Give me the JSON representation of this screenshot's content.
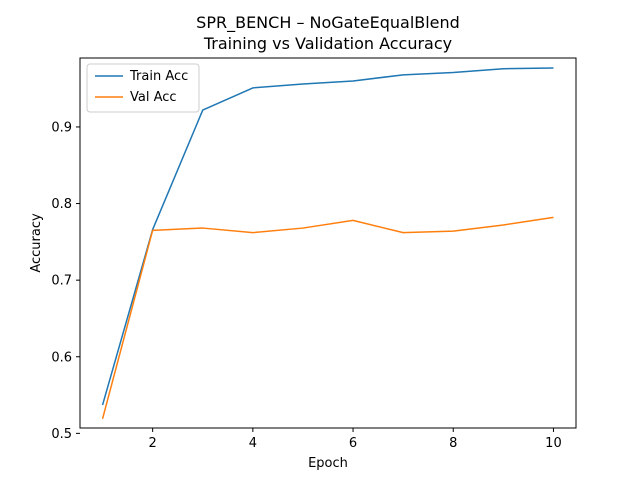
{
  "chart_data": {
    "type": "line",
    "title": "SPR_BENCH – NoGateEqualBlend",
    "subtitle": "Training vs Validation Accuracy",
    "xlabel": "Epoch",
    "ylabel": "Accuracy",
    "x": [
      1,
      2,
      3,
      4,
      5,
      6,
      7,
      8,
      9,
      10
    ],
    "xlim": [
      0.55,
      10.45
    ],
    "ylim": [
      0.507,
      0.99
    ],
    "xticks": [
      2,
      4,
      6,
      8,
      10
    ],
    "yticks": [
      0.5,
      0.6,
      0.7,
      0.8,
      0.9
    ],
    "xtick_labels": [
      "2",
      "4",
      "6",
      "8",
      "10"
    ],
    "ytick_labels": [
      "0.5",
      "0.6",
      "0.7",
      "0.8",
      "0.9"
    ],
    "grid": false,
    "legend_position": "top-left",
    "series": [
      {
        "name": "Train Acc",
        "color": "#1f77b4",
        "values": [
          0.537,
          0.766,
          0.922,
          0.951,
          0.956,
          0.96,
          0.968,
          0.971,
          0.976,
          0.977
        ]
      },
      {
        "name": "Val Acc",
        "color": "#ff7f0e",
        "values": [
          0.519,
          0.765,
          0.768,
          0.762,
          0.768,
          0.778,
          0.762,
          0.764,
          0.772,
          0.782
        ]
      }
    ]
  }
}
